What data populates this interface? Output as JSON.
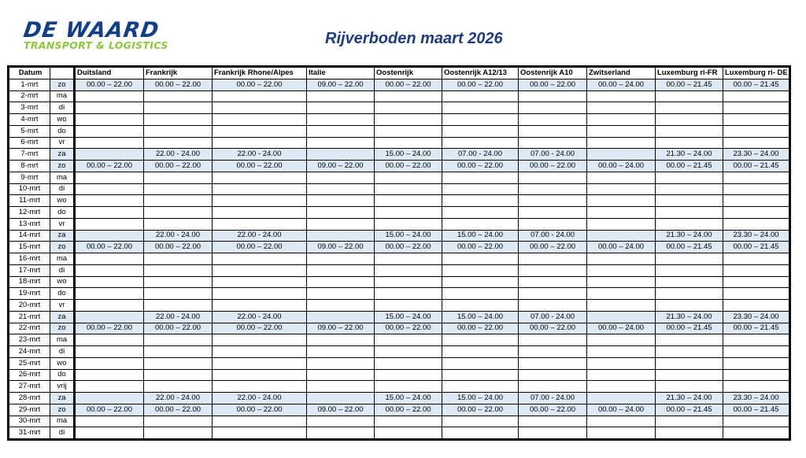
{
  "logo": {
    "line1": "DE WAARD",
    "line2": "TRANSPORT & LOGISTICS"
  },
  "title": "Rijverboden maart 2026",
  "headers": [
    "Datum",
    "",
    "Duitsland",
    "Frankrijk",
    "Frankrijk Rhone/Alpes",
    "Italie",
    "Oostenrijk",
    "Oostenrijk A12/13",
    "Oostenrijk A10",
    "Zwitserland",
    "Luxemburg ri-FR",
    "Luxemburg ri- DE"
  ],
  "rows": [
    {
      "date": "1-mrt",
      "day": "zo",
      "cells": [
        "00.00 – 22.00",
        "00.00 – 22.00",
        "00.00 – 22.00",
        "09.00 – 22.00",
        "00.00 – 22.00",
        "00.00 – 22.00",
        "00.00 – 22.00",
        "00.00 – 24.00",
        "00.00 – 21.45",
        "00.00 – 21.45"
      ]
    },
    {
      "date": "2-mrt",
      "day": "ma",
      "cells": []
    },
    {
      "date": "3-mrt",
      "day": "di",
      "cells": []
    },
    {
      "date": "4-mrt",
      "day": "wo",
      "cells": []
    },
    {
      "date": "5-mrt",
      "day": "do",
      "cells": []
    },
    {
      "date": "6-mrt",
      "day": "vr",
      "cells": []
    },
    {
      "date": "7-mrt",
      "day": "za",
      "cells": [
        "",
        "22.00 - 24.00",
        "22.00 - 24.00",
        "",
        "15.00 – 24.00",
        "07.00 - 24.00",
        "07.00 - 24.00",
        "",
        "21.30 – 24.00",
        "23.30 – 24.00"
      ]
    },
    {
      "date": "8-mrt",
      "day": "zo",
      "cells": [
        "00.00 – 22.00",
        "00.00 – 22.00",
        "00.00 – 22.00",
        "09.00 – 22.00",
        "00.00 – 22.00",
        "00.00 – 22.00",
        "00.00 – 22.00",
        "00.00 – 24.00",
        "00.00 – 21.45",
        "00.00 – 21.45"
      ]
    },
    {
      "date": "9-mrt",
      "day": "ma",
      "cells": []
    },
    {
      "date": "10-mrt",
      "day": "di",
      "cells": []
    },
    {
      "date": "11-mrt",
      "day": "wo",
      "cells": []
    },
    {
      "date": "12-mrt",
      "day": "do",
      "cells": []
    },
    {
      "date": "13-mrt",
      "day": "vr",
      "cells": []
    },
    {
      "date": "14-mrt",
      "day": "za",
      "cells": [
        "",
        "22.00 - 24.00",
        "22.00 - 24.00",
        "",
        "15.00 – 24.00",
        "15.00 – 24.00",
        "07.00 - 24.00",
        "",
        "21.30 – 24.00",
        "23.30 – 24.00"
      ]
    },
    {
      "date": "15-mrt",
      "day": "zo",
      "cells": [
        "00.00 – 22.00",
        "00.00 – 22.00",
        "00.00 – 22.00",
        "09.00 – 22.00",
        "00.00 – 22.00",
        "00.00 – 22.00",
        "00.00 – 22.00",
        "00.00 – 24.00",
        "00.00 – 21.45",
        "00.00 – 21.45"
      ]
    },
    {
      "date": "16-mrt",
      "day": "ma",
      "cells": []
    },
    {
      "date": "17-mrt",
      "day": "di",
      "cells": []
    },
    {
      "date": "18-mrt",
      "day": "wo",
      "cells": []
    },
    {
      "date": "19-mrt",
      "day": "do",
      "cells": []
    },
    {
      "date": "20-mrt",
      "day": "vr",
      "cells": []
    },
    {
      "date": "21-mrt",
      "day": "za",
      "cells": [
        "",
        "22.00 - 24.00",
        "22.00 - 24.00",
        "",
        "15.00 – 24.00",
        "15.00 – 24.00",
        "07.00 - 24.00",
        "",
        "21.30 – 24.00",
        "23.30 – 24.00"
      ]
    },
    {
      "date": "22-mrt",
      "day": "zo",
      "cells": [
        "00.00 – 22.00",
        "00.00 – 22.00",
        "00.00 – 22.00",
        "09.00 – 22.00",
        "00.00 – 22.00",
        "00.00 – 22.00",
        "00.00 – 22.00",
        "00.00 – 24.00",
        "00.00 – 21.45",
        "00.00 – 21.45"
      ]
    },
    {
      "date": "23-mrt",
      "day": "ma",
      "cells": []
    },
    {
      "date": "24-mrt",
      "day": "di",
      "cells": []
    },
    {
      "date": "25-mrt",
      "day": "wo",
      "cells": []
    },
    {
      "date": "26-mrt",
      "day": "do",
      "cells": []
    },
    {
      "date": "27-mrt",
      "day": "vrij",
      "cells": []
    },
    {
      "date": "28-mrt",
      "day": "za",
      "cells": [
        "",
        "22.00 - 24.00",
        "22.00 - 24.00",
        "",
        "15.00 – 24.00",
        "15.00 – 24.00",
        "07.00 - 24.00",
        "",
        "21.30 – 24.00",
        "23.30 – 24.00"
      ]
    },
    {
      "date": "29-mrt",
      "day": "zo",
      "cells": [
        "00.00 – 22.00",
        "00.00 – 22.00",
        "00.00 – 22.00",
        "09.00 – 22.00",
        "00.00 – 22.00",
        "00.00 – 22.00",
        "00.00 – 22.00",
        "00.00 – 24.00",
        "00.00 – 21.45",
        "00.00 – 21.45"
      ]
    },
    {
      "date": "30-mrt",
      "day": "ma",
      "cells": []
    },
    {
      "date": "31-mrt",
      "day": "di",
      "cells": []
    }
  ]
}
